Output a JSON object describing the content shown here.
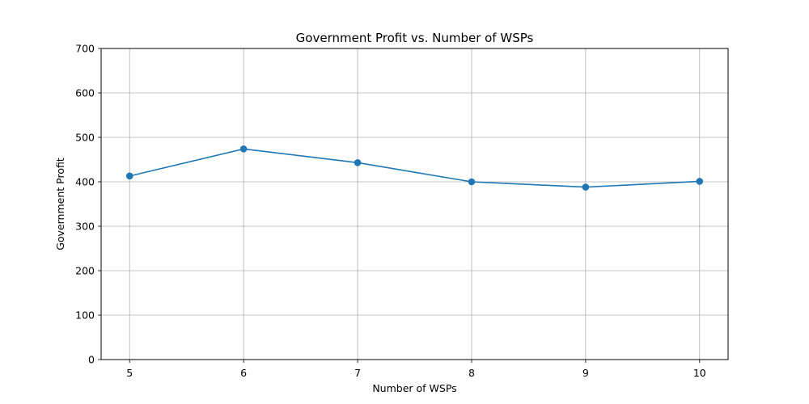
{
  "chart_data": {
    "type": "line",
    "title": "Government Profit vs. Number of WSPs",
    "xlabel": "Number of WSPs",
    "ylabel": "Government Profit",
    "x": [
      5,
      6,
      7,
      8,
      9,
      10
    ],
    "series": [
      {
        "values": [
          413,
          474,
          443,
          400,
          388,
          401
        ],
        "color": "#1f77b4",
        "marker": "circle"
      }
    ],
    "xticks": [
      "5",
      "6",
      "7",
      "8",
      "9",
      "10"
    ],
    "yticks": [
      "0",
      "100",
      "200",
      "300",
      "400",
      "500",
      "600",
      "700"
    ],
    "xlim": [
      4.75,
      10.25
    ],
    "ylim": [
      0,
      700
    ],
    "grid": true
  }
}
